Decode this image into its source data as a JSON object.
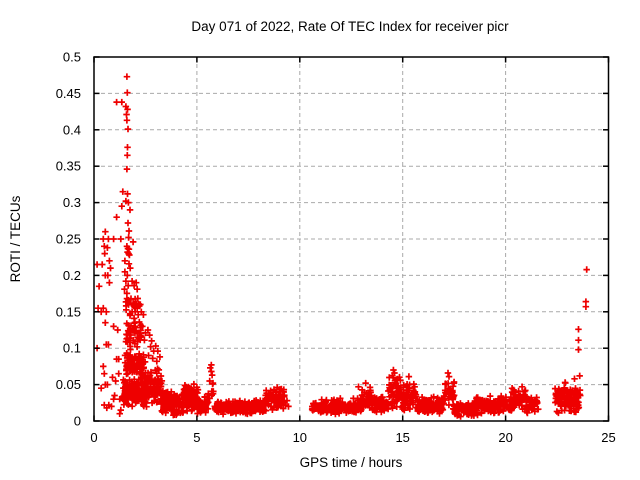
{
  "window": {
    "background": "#ffffff"
  },
  "chart_data": {
    "type": "scatter",
    "title": "Day 071 of 2022, Rate Of TEC Index for receiver picr",
    "xlabel": "GPS time / hours",
    "ylabel": "ROTI / TECUs",
    "xlim": [
      0,
      25
    ],
    "ylim": [
      0,
      0.5
    ],
    "xticks": [
      0,
      5,
      10,
      15,
      20,
      25
    ],
    "yticks": [
      0,
      0.05,
      0.1,
      0.15,
      0.2,
      0.25,
      0.3,
      0.35,
      0.4,
      0.45,
      0.5
    ],
    "grid": {
      "enabled": true,
      "style": "dashed",
      "color": "#a9a9a9"
    },
    "legend": "none",
    "marker": {
      "shape": "plus",
      "color": "#ee0000",
      "size": 6.5
    },
    "colors": {
      "border": "#000000",
      "text": "#000000",
      "background": "#ffffff"
    },
    "seed": 20220711,
    "points": [
      [
        0.15,
        0.215
      ],
      [
        0.2,
        0.155
      ],
      [
        0.15,
        0.1
      ],
      [
        0.25,
        0.185
      ],
      [
        0.55,
        0.26
      ],
      [
        0.45,
        0.25
      ],
      [
        0.7,
        0.25
      ],
      [
        0.95,
        0.25
      ],
      [
        1.3,
        0.25
      ],
      [
        0.5,
        0.24
      ],
      [
        0.65,
        0.238
      ],
      [
        0.52,
        0.23
      ],
      [
        0.75,
        0.22
      ],
      [
        0.4,
        0.215
      ],
      [
        0.8,
        0.21
      ],
      [
        0.55,
        0.2
      ],
      [
        0.67,
        0.2
      ],
      [
        0.75,
        0.19
      ],
      [
        0.45,
        0.155
      ],
      [
        0.35,
        0.15
      ],
      [
        0.6,
        0.15
      ],
      [
        0.55,
        0.135
      ],
      [
        0.95,
        0.13
      ],
      [
        1.15,
        0.125
      ],
      [
        0.6,
        0.105
      ],
      [
        0.7,
        0.105
      ],
      [
        1.1,
        0.085
      ],
      [
        1.2,
        0.085
      ],
      [
        0.45,
        0.075
      ],
      [
        0.5,
        0.065
      ],
      [
        1.2,
        0.065
      ],
      [
        0.9,
        0.06
      ],
      [
        1.05,
        0.055
      ],
      [
        0.55,
        0.05
      ],
      [
        0.65,
        0.05
      ],
      [
        0.35,
        0.045
      ],
      [
        1.0,
        0.035
      ],
      [
        0.95,
        0.03
      ],
      [
        1.25,
        0.03
      ],
      [
        0.5,
        0.022
      ],
      [
        0.62,
        0.018
      ],
      [
        0.72,
        0.022
      ],
      [
        0.85,
        0.02
      ],
      [
        1.25,
        0.01
      ],
      [
        1.3,
        0.015
      ],
      [
        1.6,
        0.473
      ],
      [
        1.62,
        0.451
      ],
      [
        1.1,
        0.438
      ],
      [
        1.35,
        0.438
      ],
      [
        1.55,
        0.432
      ],
      [
        1.63,
        0.428
      ],
      [
        1.58,
        0.421
      ],
      [
        1.6,
        0.413
      ],
      [
        1.65,
        0.401
      ],
      [
        1.63,
        0.376
      ],
      [
        1.62,
        0.365
      ],
      [
        1.6,
        0.346
      ],
      [
        1.4,
        0.315
      ],
      [
        1.63,
        0.312
      ],
      [
        1.55,
        0.302
      ],
      [
        1.67,
        0.3
      ],
      [
        1.35,
        0.295
      ],
      [
        1.75,
        0.29
      ],
      [
        1.1,
        0.28
      ],
      [
        1.65,
        0.272
      ],
      [
        1.7,
        0.261
      ],
      [
        1.68,
        0.252
      ],
      [
        1.9,
        0.246
      ],
      [
        1.6,
        0.24
      ],
      [
        1.65,
        0.237
      ],
      [
        1.7,
        0.236
      ],
      [
        1.63,
        0.232
      ],
      [
        1.68,
        0.23
      ],
      [
        1.72,
        0.228
      ],
      [
        1.5,
        0.22
      ],
      [
        1.7,
        0.216
      ],
      [
        1.76,
        0.21
      ],
      [
        1.5,
        0.205
      ],
      [
        1.62,
        0.2
      ],
      [
        1.55,
        0.192
      ],
      [
        1.66,
        0.186
      ],
      [
        1.48,
        0.181
      ],
      [
        1.85,
        0.192
      ],
      [
        1.95,
        0.186
      ],
      [
        2.05,
        0.19
      ],
      [
        2.1,
        0.181
      ],
      [
        1.8,
        0.168
      ],
      [
        1.9,
        0.162
      ],
      [
        2.0,
        0.157
      ],
      [
        2.1,
        0.155
      ],
      [
        2.25,
        0.16
      ],
      [
        1.85,
        0.15
      ],
      [
        2.0,
        0.15
      ],
      [
        2.15,
        0.146
      ],
      [
        1.75,
        0.145
      ],
      [
        1.95,
        0.141
      ],
      [
        2.3,
        0.15
      ],
      [
        2.4,
        0.146
      ],
      [
        2.2,
        0.136
      ],
      [
        2.35,
        0.13
      ],
      [
        1.8,
        0.131
      ],
      [
        1.9,
        0.126
      ],
      [
        2.0,
        0.13
      ],
      [
        2.1,
        0.121
      ],
      [
        2.5,
        0.121
      ],
      [
        2.3,
        0.116
      ],
      [
        2.45,
        0.111
      ],
      [
        2.62,
        0.125
      ],
      [
        2.7,
        0.118
      ],
      [
        2.8,
        0.11
      ],
      [
        2.75,
        0.102
      ],
      [
        2.9,
        0.096
      ],
      [
        3.0,
        0.103
      ],
      [
        3.1,
        0.096
      ],
      [
        2.65,
        0.09
      ],
      [
        2.85,
        0.086
      ],
      [
        3.05,
        0.082
      ],
      [
        3.2,
        0.088
      ],
      [
        5.65,
        0.073
      ],
      [
        5.7,
        0.077
      ],
      [
        5.7,
        0.068
      ],
      [
        5.74,
        0.063
      ],
      [
        5.62,
        0.055
      ],
      [
        5.78,
        0.052
      ],
      [
        8.9,
        0.046
      ],
      [
        9.0,
        0.043
      ],
      [
        9.3,
        0.022
      ],
      [
        9.38,
        0.028
      ],
      [
        9.45,
        0.02
      ],
      [
        12.85,
        0.047
      ],
      [
        13.2,
        0.052
      ],
      [
        14.55,
        0.07
      ],
      [
        14.6,
        0.066
      ],
      [
        15.3,
        0.061
      ],
      [
        17.2,
        0.066
      ],
      [
        17.25,
        0.061
      ],
      [
        20.8,
        0.047
      ],
      [
        23.54,
        0.126
      ],
      [
        23.54,
        0.111
      ],
      [
        23.54,
        0.098
      ],
      [
        23.9,
        0.164
      ],
      [
        23.9,
        0.157
      ],
      [
        23.94,
        0.208
      ],
      [
        23.6,
        0.062
      ],
      [
        23.35,
        0.058
      ]
    ],
    "clusters": [
      {
        "x": [
          1.4,
          2.6
        ],
        "v": [
          0.018,
          0.06
        ],
        "n": 150
      },
      {
        "x": [
          1.5,
          2.5
        ],
        "v": [
          0.06,
          0.1
        ],
        "n": 85
      },
      {
        "x": [
          1.55,
          2.3
        ],
        "v": [
          0.1,
          0.14
        ],
        "n": 40
      },
      {
        "x": [
          1.55,
          2.2
        ],
        "v": [
          0.14,
          0.18
        ],
        "n": 20
      },
      {
        "x": [
          2.3,
          3.3
        ],
        "v": [
          0.015,
          0.075
        ],
        "n": 110
      },
      {
        "x": [
          3.25,
          4.35
        ],
        "v": [
          0.006,
          0.042
        ],
        "n": 120
      },
      {
        "x": [
          4.3,
          5.05
        ],
        "v": [
          0.01,
          0.058
        ],
        "n": 75
      },
      {
        "x": [
          5.0,
          5.55
        ],
        "v": [
          0.008,
          0.035
        ],
        "n": 55
      },
      {
        "x": [
          5.55,
          5.85
        ],
        "v": [
          0.028,
          0.052
        ],
        "n": 8
      },
      {
        "x": [
          5.85,
          8.3
        ],
        "v": [
          0.008,
          0.03
        ],
        "n": 200
      },
      {
        "x": [
          8.3,
          9.25
        ],
        "v": [
          0.012,
          0.046
        ],
        "n": 80
      },
      {
        "x": [
          10.6,
          11.0
        ],
        "v": [
          0.012,
          0.026
        ],
        "n": 22
      },
      {
        "x": [
          11.0,
          13.0
        ],
        "v": [
          0.008,
          0.032
        ],
        "n": 180
      },
      {
        "x": [
          13.0,
          13.5
        ],
        "v": [
          0.014,
          0.05
        ],
        "n": 40
      },
      {
        "x": [
          13.5,
          14.3
        ],
        "v": [
          0.008,
          0.035
        ],
        "n": 75
      },
      {
        "x": [
          14.3,
          14.9
        ],
        "v": [
          0.014,
          0.066
        ],
        "n": 50
      },
      {
        "x": [
          14.9,
          15.7
        ],
        "v": [
          0.012,
          0.058
        ],
        "n": 65
      },
      {
        "x": [
          15.7,
          17.0
        ],
        "v": [
          0.008,
          0.035
        ],
        "n": 110
      },
      {
        "x": [
          17.0,
          17.5
        ],
        "v": [
          0.014,
          0.062
        ],
        "n": 38
      },
      {
        "x": [
          17.5,
          18.5
        ],
        "v": [
          0.005,
          0.028
        ],
        "n": 85
      },
      {
        "x": [
          18.5,
          20.3
        ],
        "v": [
          0.008,
          0.035
        ],
        "n": 150
      },
      {
        "x": [
          20.3,
          21.0
        ],
        "v": [
          0.012,
          0.046
        ],
        "n": 60
      },
      {
        "x": [
          21.0,
          21.6
        ],
        "v": [
          0.01,
          0.035
        ],
        "n": 50
      },
      {
        "x": [
          22.4,
          22.95
        ],
        "v": [
          0.01,
          0.055
        ],
        "n": 48
      },
      {
        "x": [
          23.0,
          23.65
        ],
        "v": [
          0.008,
          0.05
        ],
        "n": 65
      }
    ]
  }
}
